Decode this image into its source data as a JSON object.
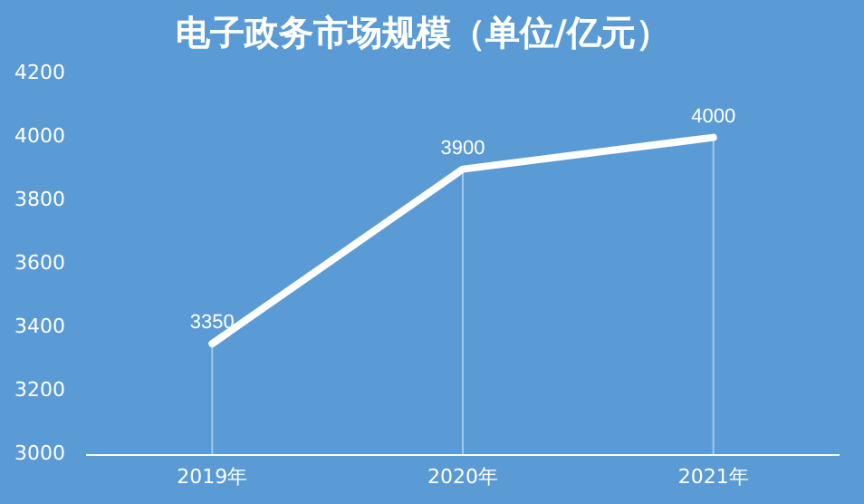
{
  "chart_data": {
    "type": "line",
    "title": "电子政务市场规模（单位/亿元）",
    "categories": [
      "2019年",
      "2020年",
      "2021年"
    ],
    "series": [
      {
        "color": "#ffffff",
        "values": [
          3350,
          3900,
          4000
        ]
      }
    ],
    "ylim": [
      3000,
      4200
    ],
    "yticks": [
      3000,
      3200,
      3400,
      3600,
      3800,
      4000,
      4200
    ],
    "grid": "x",
    "legend": false,
    "data_labels": true,
    "marker": "none"
  }
}
